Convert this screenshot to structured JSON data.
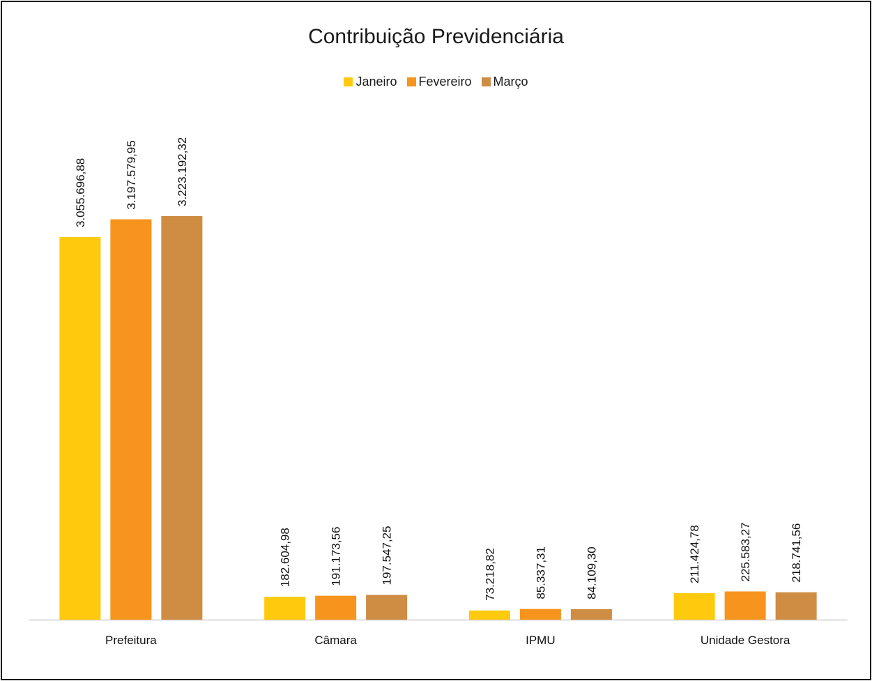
{
  "chart_data": {
    "type": "bar",
    "title": "Contribuição Previdenciária",
    "categories": [
      "Prefeitura",
      "Câmara",
      "IPMU",
      "Unidade Gestora"
    ],
    "series": [
      {
        "name": "Janeiro",
        "color": "#FFC90E",
        "values": [
          3055696.88,
          182604.98,
          73218.82,
          211424.78
        ],
        "labels": [
          "3.055.696,88",
          "182.604,98",
          "73.218,82",
          "211.424,78"
        ]
      },
      {
        "name": "Fevereiro",
        "color": "#F7941D",
        "values": [
          3197579.95,
          191173.56,
          85337.31,
          225583.27
        ],
        "labels": [
          "3.197.579,95",
          "191.173,56",
          "85.337,31",
          "225.583,27"
        ]
      },
      {
        "name": "Março",
        "color": "#CF8C43",
        "values": [
          3223192.32,
          197547.25,
          84109.3,
          218741.56
        ],
        "labels": [
          "3.223.192,32",
          "197.547,25",
          "84.109,30",
          "218.741,56"
        ]
      }
    ],
    "ylim": [
      0,
      3223192.32
    ],
    "legend_position": "top",
    "grid": false
  }
}
